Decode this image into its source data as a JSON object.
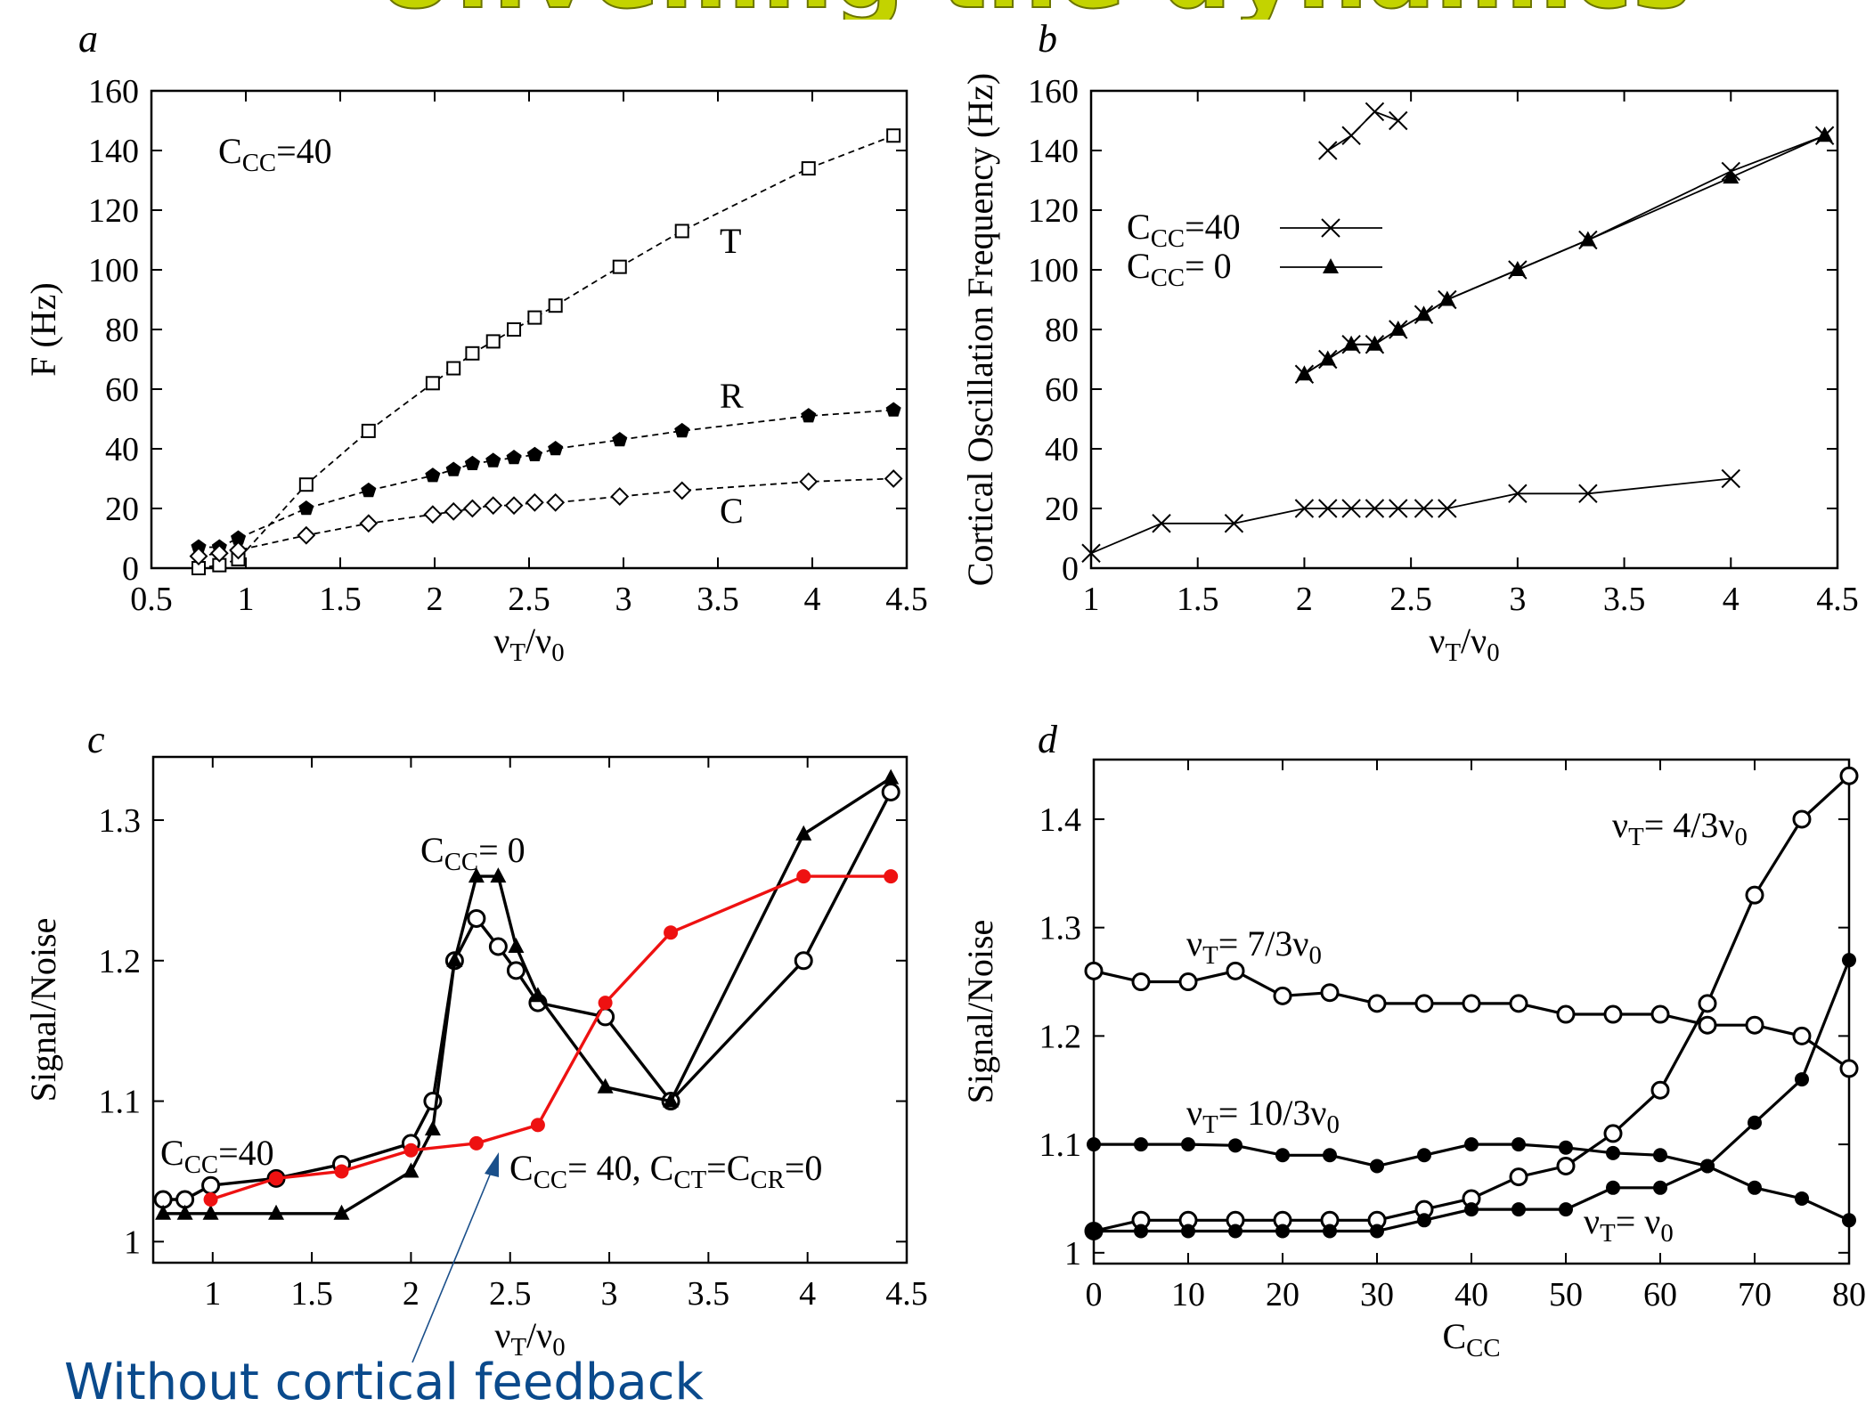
{
  "slide": {
    "title": "Unveiling the dynamics",
    "title_color": "#c3d300",
    "caption": "Without cortical feedback",
    "caption_color": "#0a4a8c"
  },
  "chart_data": [
    {
      "panel": "a",
      "type": "line",
      "xlabel": "νT/ν0",
      "ylabel": "F (Hz)",
      "xlim": [
        0.5,
        4.5
      ],
      "ylim": [
        0,
        160
      ],
      "xticks": [
        0.5,
        1,
        1.5,
        2,
        2.5,
        3,
        3.5,
        4,
        4.5
      ],
      "xtick_labels": [
        "0.5",
        "1",
        "1.5",
        "2",
        "2.5",
        "3",
        "3.5",
        "4",
        "4.5"
      ],
      "yticks": [
        0,
        20,
        40,
        60,
        80,
        100,
        120,
        140,
        160
      ],
      "ytick_labels": [
        "0",
        "20",
        "40",
        "60",
        "80",
        "100",
        "120",
        "140",
        "160"
      ],
      "annotation": "CCC=40",
      "series": [
        {
          "name": "T",
          "marker": "open-square",
          "x": [
            0.75,
            0.86,
            0.96,
            1.32,
            1.65,
            1.99,
            2.1,
            2.2,
            2.31,
            2.42,
            2.53,
            2.64,
            2.98,
            3.31,
            3.98,
            4.43
          ],
          "y": [
            0,
            1,
            3,
            28,
            46,
            62,
            67,
            72,
            76,
            80,
            84,
            88,
            101,
            113,
            134,
            145
          ]
        },
        {
          "name": "R",
          "marker": "filled-pentagon",
          "x": [
            0.75,
            0.86,
            0.96,
            1.32,
            1.65,
            1.99,
            2.1,
            2.2,
            2.31,
            2.42,
            2.53,
            2.64,
            2.98,
            3.31,
            3.98,
            4.43
          ],
          "y": [
            7,
            7,
            10,
            20,
            26,
            31,
            33,
            35,
            36,
            37,
            38,
            40,
            43,
            46,
            51,
            53
          ]
        },
        {
          "name": "C",
          "marker": "open-diamond",
          "x": [
            0.75,
            0.86,
            0.96,
            1.32,
            1.65,
            1.99,
            2.1,
            2.2,
            2.31,
            2.42,
            2.53,
            2.64,
            2.98,
            3.31,
            3.98,
            4.43
          ],
          "y": [
            4,
            5,
            6,
            11,
            15,
            18,
            19,
            20,
            21,
            21,
            22,
            22,
            24,
            26,
            29,
            30
          ]
        }
      ]
    },
    {
      "panel": "b",
      "type": "line",
      "xlabel": "νT/ν0",
      "ylabel": "Cortical Oscillation Frequency (Hz)",
      "xlim": [
        1,
        4.5
      ],
      "ylim": [
        0,
        160
      ],
      "xticks": [
        1,
        1.5,
        2,
        2.5,
        3,
        3.5,
        4,
        4.5
      ],
      "xtick_labels": [
        "1",
        "1.5",
        "2",
        "2.5",
        "3",
        "3.5",
        "4",
        "4.5"
      ],
      "yticks": [
        0,
        20,
        40,
        60,
        80,
        100,
        120,
        140,
        160
      ],
      "ytick_labels": [
        "0",
        "20",
        "40",
        "60",
        "80",
        "100",
        "120",
        "140",
        "160"
      ],
      "legend": [
        "CCC=40",
        "CCC= 0"
      ],
      "series": [
        {
          "name": "CCC=40 low",
          "legend_index": 0,
          "marker": "cross",
          "x": [
            1,
            1.33,
            1.67,
            2,
            2.11,
            2.22,
            2.33,
            2.44,
            2.56,
            2.67,
            3,
            3.33,
            4
          ],
          "y": [
            5,
            15,
            15,
            20,
            20,
            20,
            20,
            20,
            20,
            20,
            25,
            25,
            30
          ]
        },
        {
          "name": "CCC=40 mid",
          "legend_index": 0,
          "marker": "cross",
          "x": [
            2,
            2.11,
            2.22,
            2.33,
            2.44,
            2.56,
            2.67,
            3,
            3.33,
            4,
            4.44
          ],
          "y": [
            65,
            70,
            75,
            75,
            80,
            85,
            90,
            100,
            110,
            133,
            145
          ]
        },
        {
          "name": "CCC=40 high",
          "legend_index": 0,
          "marker": "cross",
          "x": [
            2.11,
            2.22,
            2.33,
            2.44
          ],
          "y": [
            140,
            145,
            153,
            150
          ]
        },
        {
          "name": "CCC= 0",
          "legend_index": 1,
          "marker": "filled-triangle",
          "x": [
            2,
            2.11,
            2.22,
            2.33,
            2.44,
            2.56,
            2.67,
            3,
            3.33,
            4,
            4.44
          ],
          "y": [
            65,
            70,
            75,
            75,
            80,
            85,
            90,
            100,
            110,
            131,
            145
          ]
        }
      ]
    },
    {
      "panel": "c",
      "type": "line",
      "xlabel": "νT/ν0",
      "ylabel": "Signal/Noise",
      "xlim": [
        0.7,
        4.5
      ],
      "ylim": [
        0.985,
        1.345
      ],
      "xticks": [
        1,
        1.5,
        2,
        2.5,
        3,
        3.5,
        4,
        4.5
      ],
      "xtick_labels": [
        "1",
        "1.5",
        "2",
        "2.5",
        "3",
        "3.5",
        "4",
        "4.5"
      ],
      "yticks": [
        1,
        1.1,
        1.2,
        1.3
      ],
      "ytick_labels": [
        "1",
        "1.1",
        "1.2",
        "1.3"
      ],
      "annotations": [
        "CCC= 0",
        "CCC=40",
        "CCC= 40, CCT=CCR=0"
      ],
      "series": [
        {
          "name": "CCC=40",
          "marker": "open-circle",
          "color": "#000000",
          "x": [
            0.75,
            0.86,
            0.99,
            1.32,
            1.65,
            2,
            2.11,
            2.22,
            2.33,
            2.44,
            2.53,
            2.64,
            2.98,
            3.31,
            3.98,
            4.42
          ],
          "y": [
            1.03,
            1.03,
            1.04,
            1.045,
            1.055,
            1.07,
            1.1,
            1.2,
            1.23,
            1.21,
            1.193,
            1.17,
            1.16,
            1.1,
            1.2,
            1.32
          ]
        },
        {
          "name": "CCC= 0",
          "marker": "filled-triangle",
          "color": "#000000",
          "x": [
            0.75,
            0.86,
            0.99,
            1.32,
            1.65,
            2,
            2.11,
            2.22,
            2.33,
            2.44,
            2.53,
            2.64,
            2.98,
            3.31,
            3.98,
            4.42
          ],
          "y": [
            1.02,
            1.02,
            1.02,
            1.02,
            1.02,
            1.05,
            1.08,
            1.2,
            1.26,
            1.26,
            1.21,
            1.175,
            1.11,
            1.1,
            1.29,
            1.33
          ]
        },
        {
          "name": "CCC= 40, CCT=CCR=0",
          "marker": "filled-circle",
          "color": "#ee1111",
          "x": [
            0.99,
            1.32,
            1.65,
            2,
            2.33,
            2.64,
            2.98,
            3.31,
            3.98,
            4.42
          ],
          "y": [
            1.03,
            1.045,
            1.05,
            1.065,
            1.07,
            1.083,
            1.17,
            1.22,
            1.26,
            1.26
          ]
        }
      ]
    },
    {
      "panel": "d",
      "type": "line",
      "xlabel": "CCC",
      "ylabel": "Signal/Noise",
      "xlim": [
        0,
        80
      ],
      "ylim": [
        0.99,
        1.455
      ],
      "xticks": [
        0,
        10,
        20,
        30,
        40,
        50,
        60,
        70,
        80
      ],
      "xtick_labels": [
        "0",
        "10",
        "20",
        "30",
        "40",
        "50",
        "60",
        "70",
        "80"
      ],
      "yticks": [
        1,
        1.1,
        1.2,
        1.3,
        1.4
      ],
      "ytick_labels": [
        "1",
        "1.1",
        "1.2",
        "1.3",
        "1.4"
      ],
      "series": [
        {
          "name": "νT= 4/3ν0",
          "marker": "open-circle",
          "x": [
            0,
            5,
            10,
            15,
            20,
            25,
            30,
            35,
            40,
            45,
            50,
            55,
            60,
            65,
            70,
            75,
            80
          ],
          "y": [
            1.02,
            1.03,
            1.03,
            1.03,
            1.03,
            1.03,
            1.03,
            1.04,
            1.05,
            1.07,
            1.08,
            1.11,
            1.15,
            1.23,
            1.33,
            1.4,
            1.44
          ]
        },
        {
          "name": "νT= 7/3ν0",
          "marker": "open-circle",
          "x": [
            0,
            5,
            10,
            15,
            20,
            25,
            30,
            35,
            40,
            45,
            50,
            55,
            60,
            65,
            70,
            75,
            80
          ],
          "y": [
            1.26,
            1.25,
            1.25,
            1.26,
            1.237,
            1.24,
            1.23,
            1.23,
            1.23,
            1.23,
            1.22,
            1.22,
            1.22,
            1.21,
            1.21,
            1.2,
            1.17
          ]
        },
        {
          "name": "νT= 10/3ν0",
          "marker": "filled-circle",
          "x": [
            0,
            5,
            10,
            15,
            20,
            25,
            30,
            35,
            40,
            45,
            50,
            55,
            60,
            65,
            70,
            75,
            80
          ],
          "y": [
            1.1,
            1.1,
            1.1,
            1.099,
            1.09,
            1.09,
            1.08,
            1.09,
            1.1,
            1.1,
            1.097,
            1.092,
            1.09,
            1.08,
            1.06,
            1.05,
            1.03
          ]
        },
        {
          "name": "νT= ν0",
          "marker": "filled-circle",
          "x": [
            0,
            5,
            10,
            15,
            20,
            25,
            30,
            35,
            40,
            45,
            50,
            55,
            60,
            65,
            70,
            75,
            80
          ],
          "y": [
            1.02,
            1.02,
            1.02,
            1.02,
            1.02,
            1.02,
            1.02,
            1.03,
            1.04,
            1.04,
            1.04,
            1.06,
            1.06,
            1.08,
            1.12,
            1.16,
            1.27
          ]
        }
      ]
    }
  ]
}
